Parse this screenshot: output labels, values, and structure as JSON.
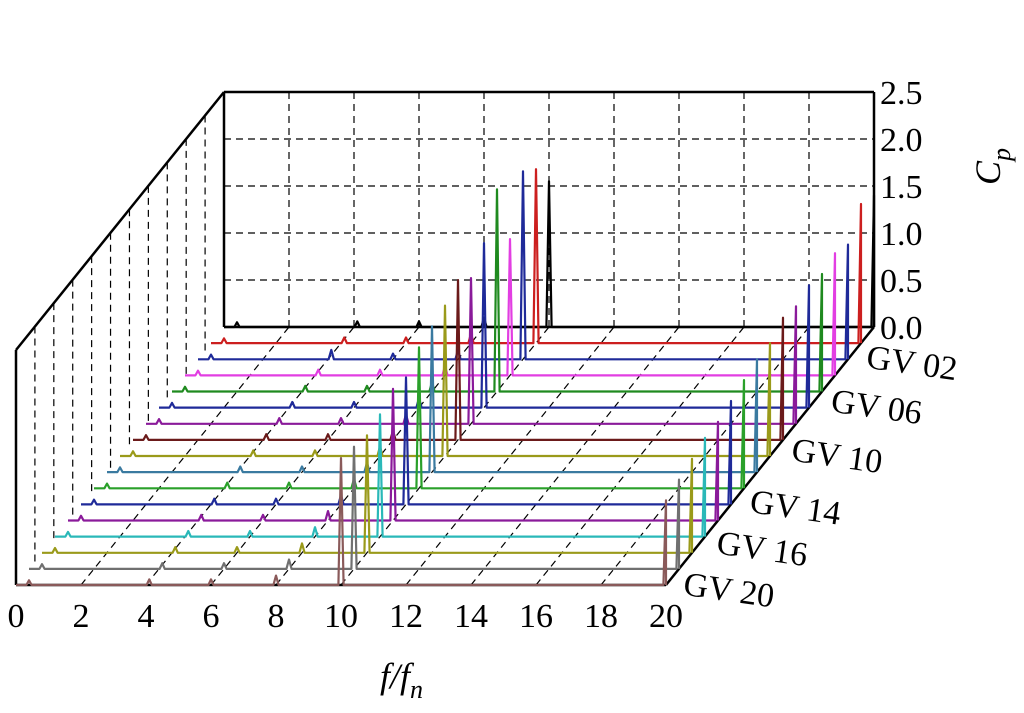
{
  "chart_data": {
    "type": "line",
    "variant": "3d-waterfall",
    "title": "",
    "xlabel": "f/f",
    "xlabel_sub": "n",
    "zlabel": "C",
    "zlabel_sub": "p",
    "xlim": [
      0,
      20
    ],
    "zlim": [
      0,
      2.5
    ],
    "x_ticks": [
      "0",
      "2",
      "4",
      "6",
      "8",
      "10",
      "12",
      "14",
      "16",
      "18",
      "20"
    ],
    "z_ticks": [
      "0.0",
      "0.5",
      "1.0",
      "1.5",
      "2.0",
      "2.5"
    ],
    "series_axis_labels": [
      "GV 02",
      "GV 06",
      "GV 10",
      "GV 14",
      "GV 16",
      "GV 20"
    ],
    "grid": true,
    "series": [
      {
        "color": "#000000",
        "peaks": [
          [
            0.4,
            0.05
          ],
          [
            4.1,
            0.06
          ],
          [
            6.0,
            0.06
          ],
          [
            8.0,
            0.1
          ],
          [
            10.0,
            1.55
          ],
          [
            20.0,
            1.4
          ]
        ]
      },
      {
        "color": "#cc1f1f",
        "peaks": [
          [
            0.4,
            0.05
          ],
          [
            4.1,
            0.06
          ],
          [
            6.0,
            0.06
          ],
          [
            8.0,
            0.1
          ],
          [
            10.0,
            1.85
          ],
          [
            20.0,
            1.48
          ]
        ]
      },
      {
        "color": "#1f2a99",
        "peaks": [
          [
            0.4,
            0.05
          ],
          [
            4.1,
            0.1
          ],
          [
            6.0,
            0.06
          ],
          [
            8.0,
            0.1
          ],
          [
            10.0,
            2.0
          ],
          [
            20.0,
            1.22
          ]
        ]
      },
      {
        "color": "#e23ee2",
        "peaks": [
          [
            0.4,
            0.05
          ],
          [
            4.1,
            0.06
          ],
          [
            6.0,
            0.06
          ],
          [
            8.0,
            0.1
          ],
          [
            10.0,
            1.45
          ],
          [
            20.0,
            1.3
          ]
        ]
      },
      {
        "color": "#1f8a1f",
        "peaks": [
          [
            0.4,
            0.05
          ],
          [
            4.1,
            0.06
          ],
          [
            6.0,
            0.06
          ],
          [
            8.0,
            0.1
          ],
          [
            10.0,
            2.15
          ],
          [
            20.0,
            1.25
          ]
        ]
      },
      {
        "color": "#1f2a99",
        "peaks": [
          [
            0.4,
            0.05
          ],
          [
            4.1,
            0.06
          ],
          [
            6.0,
            0.06
          ],
          [
            8.0,
            0.1
          ],
          [
            10.0,
            1.75
          ],
          [
            20.0,
            1.3
          ]
        ]
      },
      {
        "color": "#8a1a9a",
        "peaks": [
          [
            0.4,
            0.05
          ],
          [
            4.1,
            0.06
          ],
          [
            6.0,
            0.06
          ],
          [
            8.0,
            0.1
          ],
          [
            10.0,
            1.55
          ],
          [
            20.0,
            1.25
          ]
        ]
      },
      {
        "color": "#6b1a1a",
        "peaks": [
          [
            0.4,
            0.05
          ],
          [
            4.1,
            0.06
          ],
          [
            6.0,
            0.06
          ],
          [
            8.0,
            0.1
          ],
          [
            10.0,
            1.7
          ],
          [
            20.0,
            1.3
          ]
        ]
      },
      {
        "color": "#9a9a1a",
        "peaks": [
          [
            0.4,
            0.05
          ],
          [
            4.1,
            0.06
          ],
          [
            6.0,
            0.06
          ],
          [
            8.0,
            0.1
          ],
          [
            10.0,
            1.6
          ],
          [
            20.0,
            1.2
          ]
        ]
      },
      {
        "color": "#3a7aa0",
        "peaks": [
          [
            0.4,
            0.05
          ],
          [
            4.1,
            0.06
          ],
          [
            6.0,
            0.06
          ],
          [
            8.0,
            0.1
          ],
          [
            10.0,
            1.55
          ],
          [
            20.0,
            1.2
          ]
        ]
      },
      {
        "color": "#2aa02a",
        "peaks": [
          [
            0.4,
            0.05
          ],
          [
            4.1,
            0.06
          ],
          [
            6.0,
            0.06
          ],
          [
            8.0,
            0.1
          ],
          [
            10.0,
            1.5
          ],
          [
            20.0,
            1.15
          ]
        ]
      },
      {
        "color": "#1f2a99",
        "peaks": [
          [
            0.4,
            0.05
          ],
          [
            4.1,
            0.06
          ],
          [
            6.0,
            0.06
          ],
          [
            8.0,
            0.1
          ],
          [
            10.0,
            1.35
          ],
          [
            20.0,
            1.1
          ]
        ]
      },
      {
        "color": "#8a1a9a",
        "peaks": [
          [
            0.4,
            0.05
          ],
          [
            4.1,
            0.06
          ],
          [
            6.0,
            0.06
          ],
          [
            8.0,
            0.1
          ],
          [
            10.0,
            1.4
          ],
          [
            20.0,
            1.05
          ]
        ]
      },
      {
        "color": "#2ab8b8",
        "peaks": [
          [
            0.4,
            0.05
          ],
          [
            4.1,
            0.06
          ],
          [
            6.0,
            0.06
          ],
          [
            8.0,
            0.1
          ],
          [
            10.0,
            1.3
          ],
          [
            20.0,
            1.05
          ]
        ]
      },
      {
        "color": "#9a9a1a",
        "peaks": [
          [
            0.4,
            0.05
          ],
          [
            4.1,
            0.06
          ],
          [
            6.0,
            0.06
          ],
          [
            8.0,
            0.1
          ],
          [
            10.0,
            1.25
          ],
          [
            20.0,
            1.0
          ]
        ]
      },
      {
        "color": "#707070",
        "peaks": [
          [
            0.4,
            0.05
          ],
          [
            4.1,
            0.06
          ],
          [
            6.0,
            0.06
          ],
          [
            8.0,
            0.1
          ],
          [
            10.0,
            1.3
          ],
          [
            20.0,
            0.95
          ]
        ]
      },
      {
        "color": "#8a5a5a",
        "peaks": [
          [
            0.4,
            0.05
          ],
          [
            4.1,
            0.06
          ],
          [
            6.0,
            0.06
          ],
          [
            8.0,
            0.1
          ],
          [
            10.0,
            1.35
          ],
          [
            20.0,
            0.9
          ]
        ]
      }
    ]
  }
}
